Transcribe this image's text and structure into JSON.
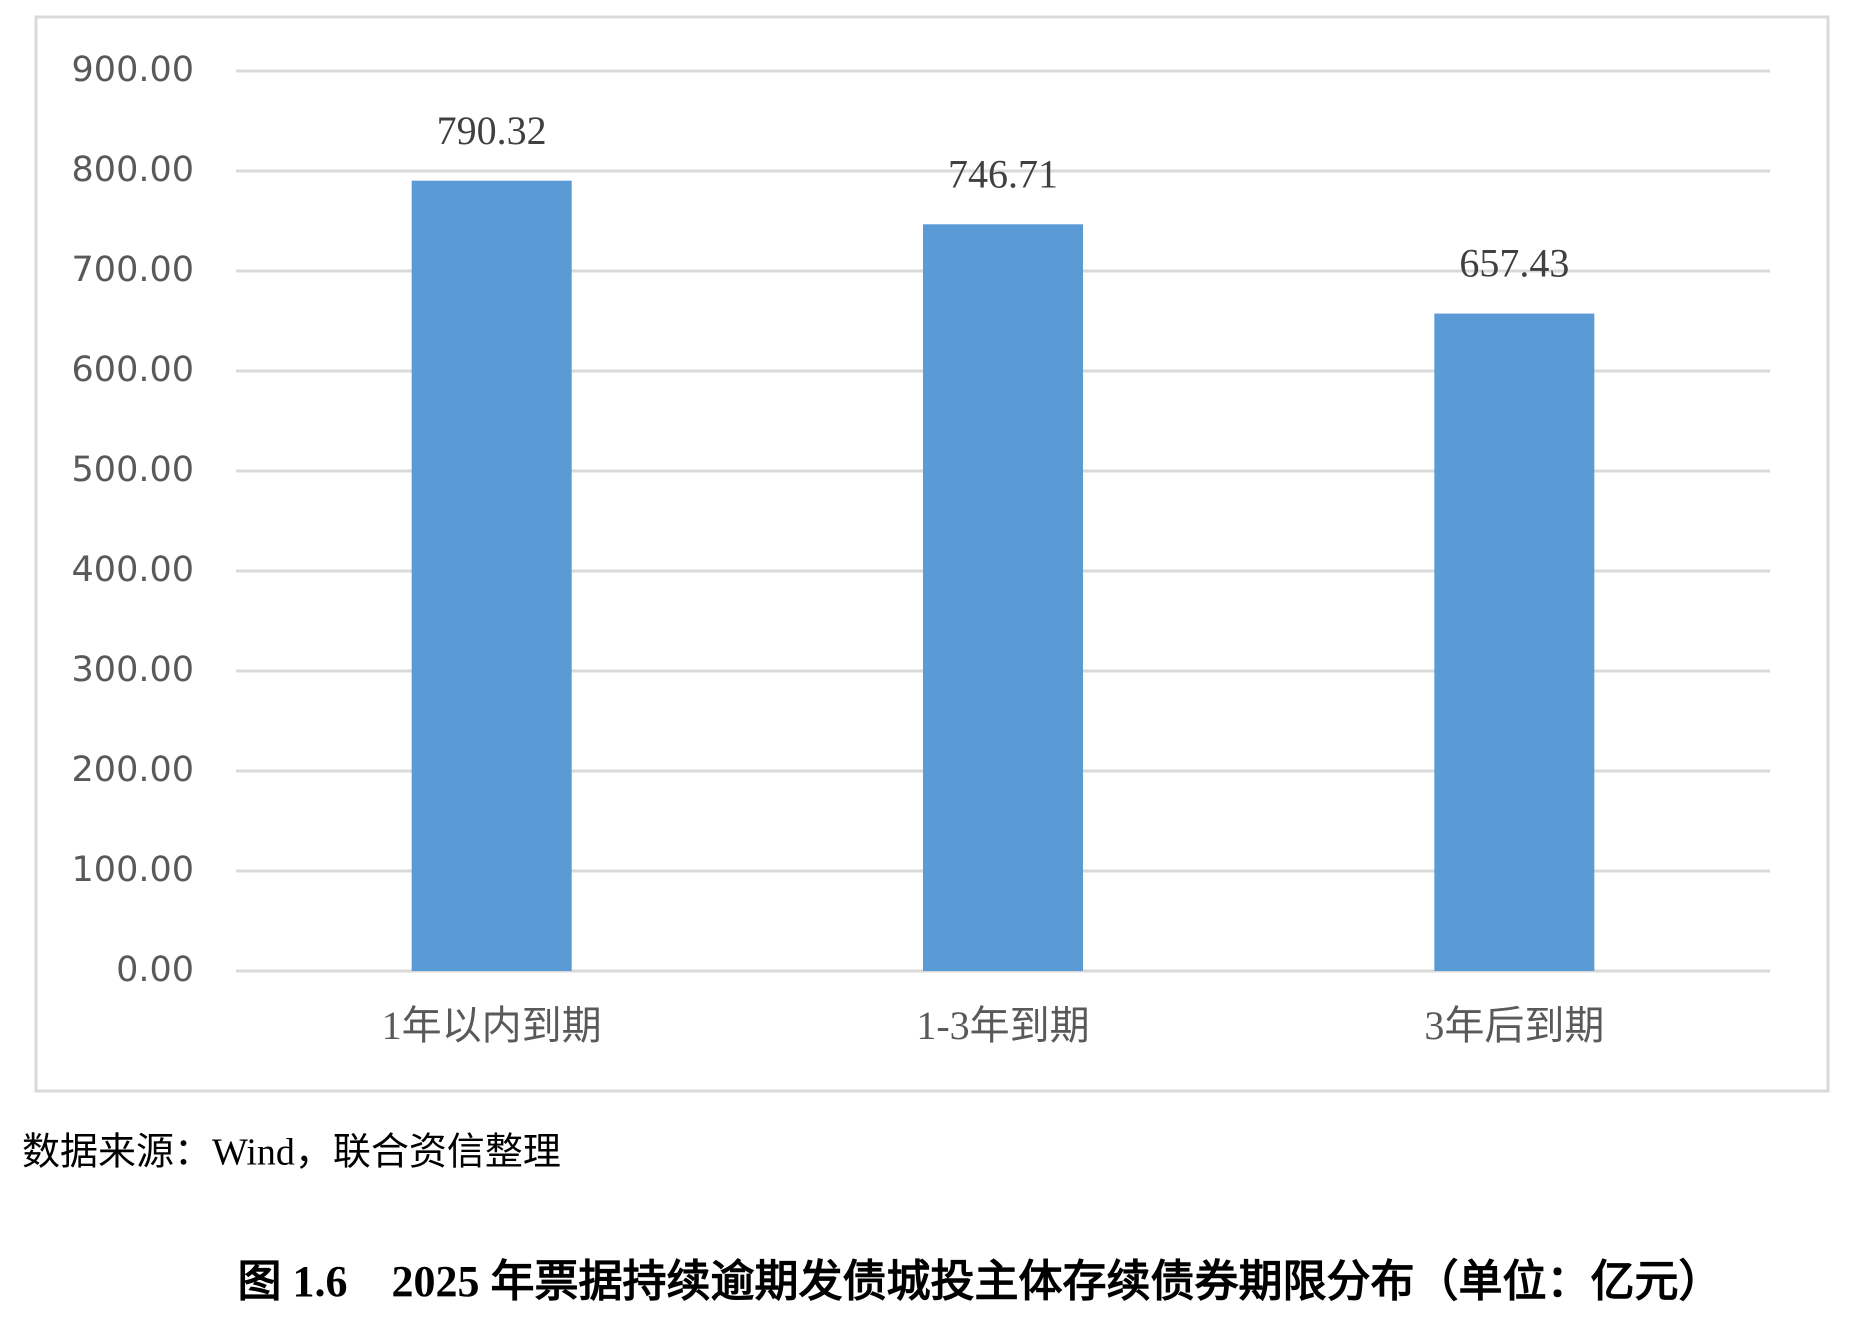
{
  "chart_data": {
    "type": "bar",
    "caption": "图 1.6　2025 年票据持续逾期发债城投主体存续债券期限分布（单位：亿元）",
    "source": "数据来源：Wind，联合资信整理",
    "categories": [
      "1年以内到期",
      "1-3年到期",
      "3年后到期"
    ],
    "values": [
      790.32,
      746.71,
      657.43
    ],
    "color": "#5b9bd5",
    "ylim": [
      0,
      900
    ],
    "yticks": [
      {
        "value": 0,
        "label": "0.00"
      },
      {
        "value": 100,
        "label": "100.00"
      },
      {
        "value": 200,
        "label": "200.00"
      },
      {
        "value": 300,
        "label": "300.00"
      },
      {
        "value": 400,
        "label": "400.00"
      },
      {
        "value": 500,
        "label": "500.00"
      },
      {
        "value": 600,
        "label": "600.00"
      },
      {
        "value": 700,
        "label": "700.00"
      },
      {
        "value": 800,
        "label": "800.00"
      },
      {
        "value": 900,
        "label": "900.00"
      }
    ],
    "grid": true
  }
}
